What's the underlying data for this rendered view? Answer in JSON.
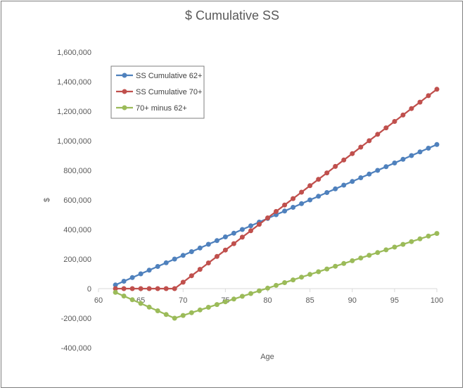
{
  "chart_data": {
    "type": "line",
    "title": "$ Cumulative SS",
    "xlabel": "Age",
    "ylabel": "$",
    "xlim": [
      60,
      100
    ],
    "ylim": [
      -400000,
      1600000
    ],
    "x_ticks": [
      "60",
      "65",
      "70",
      "75",
      "80",
      "85",
      "90",
      "95",
      "100"
    ],
    "y_ticks": [
      "-400,000",
      "-200,000",
      "0",
      "200,000",
      "400,000",
      "600,000",
      "800,000",
      "1,000,000",
      "1,200,000",
      "1,400,000",
      "1,600,000"
    ],
    "grid": false,
    "legend_position": "top-left",
    "x": [
      62,
      63,
      64,
      65,
      66,
      67,
      68,
      69,
      70,
      71,
      72,
      73,
      74,
      75,
      76,
      77,
      78,
      79,
      80,
      81,
      82,
      83,
      84,
      85,
      86,
      87,
      88,
      89,
      90,
      91,
      92,
      93,
      94,
      95,
      96,
      97,
      98,
      99,
      100
    ],
    "series": [
      {
        "name": "SS Cumulative 62+",
        "color": "#4f81bd",
        "values": [
          25000,
          50000,
          75000,
          100000,
          125000,
          150000,
          175000,
          200000,
          225000,
          250000,
          275000,
          300000,
          325000,
          350000,
          375000,
          400000,
          425000,
          450000,
          475000,
          500000,
          525000,
          550000,
          575000,
          600000,
          625000,
          650000,
          675000,
          700000,
          725000,
          750000,
          775000,
          800000,
          825000,
          850000,
          875000,
          900000,
          925000,
          950000,
          975000
        ]
      },
      {
        "name": "SS Cumulative 70+",
        "color": "#c0504d",
        "values": [
          0,
          0,
          0,
          0,
          0,
          0,
          0,
          0,
          43500,
          87000,
          130500,
          174000,
          217500,
          261000,
          304500,
          348000,
          391500,
          435000,
          478500,
          522000,
          565500,
          609000,
          652500,
          696000,
          739500,
          783000,
          826500,
          870000,
          913500,
          957000,
          1000500,
          1044000,
          1087500,
          1131000,
          1174500,
          1218000,
          1261500,
          1305000,
          1348500
        ]
      },
      {
        "name": "70+ minus 62+",
        "color": "#9bbb59",
        "values": [
          -25000,
          -50000,
          -75000,
          -100000,
          -125000,
          -150000,
          -175000,
          -200000,
          -181500,
          -163000,
          -144500,
          -126000,
          -107500,
          -89000,
          -70500,
          -52000,
          -33500,
          -15000,
          3500,
          22000,
          40500,
          59000,
          77500,
          96000,
          114500,
          133000,
          151500,
          170000,
          188500,
          207000,
          225500,
          244000,
          262500,
          281000,
          299500,
          318000,
          336500,
          355000,
          373500
        ]
      }
    ]
  }
}
